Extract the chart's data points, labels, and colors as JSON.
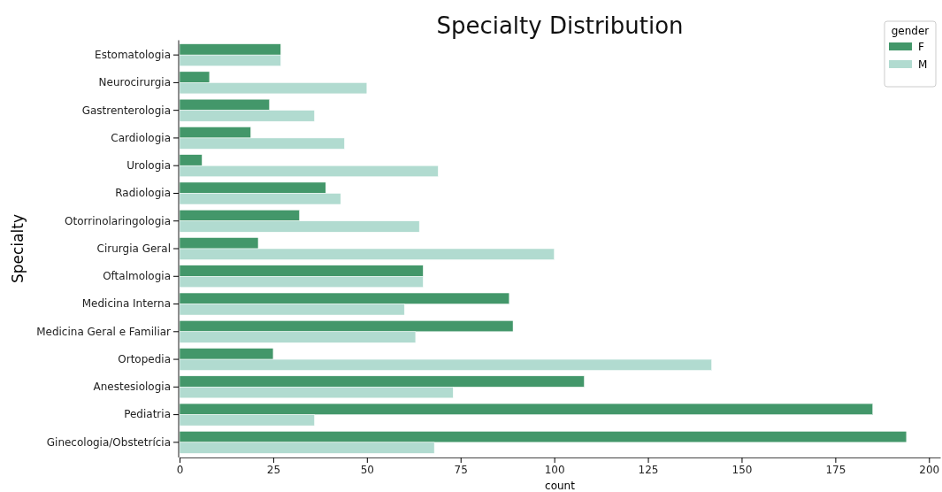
{
  "chart_data": {
    "type": "bar",
    "orientation": "horizontal",
    "title": "Specialty Distribution",
    "xlabel": "count",
    "ylabel": "Specialty",
    "legend_title": "gender",
    "legend": "top right",
    "grid": false,
    "categories": [
      "Estomatologia",
      "Neurocirurgia",
      "Gastrenterologia",
      "Cardiologia",
      "Urologia",
      "Radiologia",
      "Otorrinolaringologia",
      "Cirurgia Geral",
      "Oftalmologia",
      "Medicina Interna",
      "Medicina Geral e Familiar",
      "Ortopedia",
      "Anestesiologia",
      "Pediatria",
      "Ginecologia/Obstetrícia"
    ],
    "series": [
      {
        "name": "F",
        "color": "#43976a",
        "values": [
          27,
          8,
          24,
          19,
          6,
          39,
          32,
          21,
          65,
          88,
          89,
          25,
          108,
          185,
          194
        ]
      },
      {
        "name": "M",
        "color": "#b1dbd0",
        "values": [
          27,
          50,
          36,
          44,
          69,
          43,
          64,
          100,
          65,
          60,
          63,
          142,
          73,
          36,
          68
        ]
      }
    ],
    "xlim": [
      0,
      203
    ],
    "xticks": [
      0,
      25,
      50,
      75,
      100,
      125,
      150,
      175,
      200
    ]
  }
}
